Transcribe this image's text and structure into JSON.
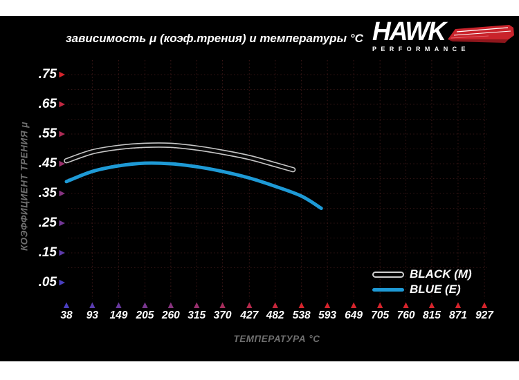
{
  "header": {
    "title": "зависимость μ (коэф.трения) и температуры °C"
  },
  "logo": {
    "brand": "HAWK",
    "subtext": "PERFORMANCE",
    "accent_color": "#c9232b"
  },
  "chart_data": {
    "type": "line",
    "title": "зависимость μ (коэф.трения) и температуры °C",
    "xlabel": "ТЕМПЕРАТУРА °C",
    "ylabel": "КОЭФФИЦИЕНТ ТРЕНИЯ μ",
    "x_ticks": [
      38,
      93,
      149,
      205,
      260,
      315,
      370,
      427,
      482,
      538,
      593,
      649,
      705,
      760,
      815,
      871,
      927
    ],
    "y_ticks": [
      ".05",
      ".15",
      ".25",
      ".35",
      ".45",
      ".55",
      ".65",
      ".75"
    ],
    "y_tick_values": [
      0.05,
      0.15,
      0.25,
      0.35,
      0.45,
      0.55,
      0.65,
      0.75
    ],
    "x_range": [
      38,
      927
    ],
    "y_range": [
      0.05,
      0.75
    ],
    "grid": "faint dotted red-gray, vertical at each temperature tick, horizontal every 0.05 μ",
    "legend_position": "bottom-right",
    "axis_gradient": {
      "top": "#d8242c",
      "corner": "#4a3fc0",
      "right": "#c42026"
    },
    "series": [
      {
        "name": "BLACK (M)",
        "style": "black line with light outline",
        "color": "#070707",
        "outline": "#c6c6c6",
        "points": [
          [
            38,
            0.46
          ],
          [
            93,
            0.49
          ],
          [
            149,
            0.505
          ],
          [
            205,
            0.512
          ],
          [
            260,
            0.512
          ],
          [
            315,
            0.503
          ],
          [
            370,
            0.489
          ],
          [
            427,
            0.471
          ],
          [
            482,
            0.447
          ],
          [
            520,
            0.43
          ]
        ]
      },
      {
        "name": "BLUE (E)",
        "style": "solid blue line",
        "color": "#1e9ad6",
        "points": [
          [
            38,
            0.39
          ],
          [
            93,
            0.424
          ],
          [
            149,
            0.443
          ],
          [
            205,
            0.452
          ],
          [
            260,
            0.45
          ],
          [
            315,
            0.44
          ],
          [
            370,
            0.424
          ],
          [
            427,
            0.402
          ],
          [
            482,
            0.374
          ],
          [
            538,
            0.341
          ],
          [
            580,
            0.3
          ]
        ]
      }
    ]
  }
}
